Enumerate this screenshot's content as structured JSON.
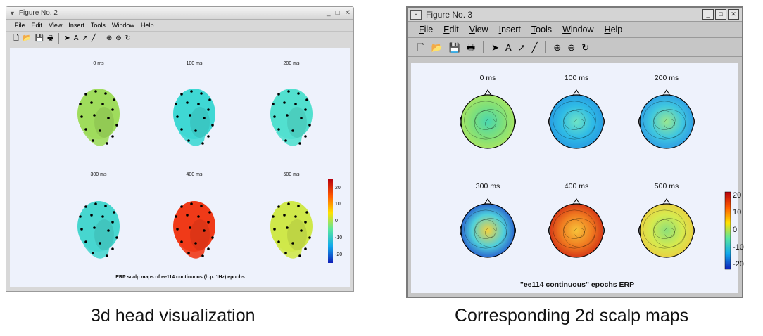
{
  "fig1": {
    "title": "Figure No. 2",
    "menu": [
      "File",
      "Edit",
      "View",
      "Insert",
      "Tools",
      "Window",
      "Help"
    ],
    "tool_icons": [
      "new-file-icon",
      "open-folder-icon",
      "save-icon",
      "print-icon",
      "arrow-pointer-icon",
      "text-tool-icon",
      "arrow-tool-icon",
      "line-tool-icon",
      "zoom-in-icon",
      "zoom-out-icon",
      "rotate-icon"
    ],
    "panels": [
      {
        "label": "0 ms",
        "color": "#9fdc5c"
      },
      {
        "label": "100 ms",
        "color": "#3fd8d4"
      },
      {
        "label": "200 ms",
        "color": "#52e0cf"
      },
      {
        "label": "300 ms",
        "color": "#47d6cf"
      },
      {
        "label": "400 ms",
        "color": "#f03a18"
      },
      {
        "label": "500 ms",
        "color": "#cfe84a"
      }
    ],
    "colorbar_ticks": [
      "20",
      "10",
      "0",
      "-10",
      "-20"
    ],
    "caption": "ERP scalp maps of ee114 continuous (h.p. 1Hz) epochs"
  },
  "fig2": {
    "title": "Figure No. 3",
    "menu": [
      "File",
      "Edit",
      "View",
      "Insert",
      "Tools",
      "Window",
      "Help"
    ],
    "tool_icons": [
      "new-file-icon",
      "open-folder-icon",
      "save-icon",
      "print-icon",
      "arrow-pointer-icon",
      "text-tool-icon",
      "arrow-tool-icon",
      "line-tool-icon",
      "zoom-in-icon",
      "zoom-out-icon",
      "rotate-icon"
    ],
    "panels": [
      {
        "label": "0 ms",
        "colors": [
          "#49d6b0",
          "#7fe07a",
          "#b9e85a"
        ]
      },
      {
        "label": "100 ms",
        "colors": [
          "#6fe4c4",
          "#2fbbe6",
          "#2590e0"
        ]
      },
      {
        "label": "200 ms",
        "colors": [
          "#9ae88f",
          "#3fc7e0",
          "#2a8ee6"
        ]
      },
      {
        "label": "300 ms",
        "colors": [
          "#f5d23d",
          "#4fd0dc",
          "#1a35c8"
        ]
      },
      {
        "label": "400 ms",
        "colors": [
          "#f7c43a",
          "#f07a20",
          "#c81a12"
        ]
      },
      {
        "label": "500 ms",
        "colors": [
          "#8de07a",
          "#d6ea4f",
          "#f2c63c"
        ]
      }
    ],
    "colorbar_ticks": [
      "20",
      "10",
      "0",
      "-10",
      "-20"
    ],
    "caption": "\"ee114 continuous\"  epochs ERP"
  },
  "colorbar_colors": [
    "#b8000c",
    "#ff5a00",
    "#ffe100",
    "#58e6a0",
    "#10a8ec",
    "#1020b8"
  ],
  "captions": {
    "left": "3d head visualization",
    "right": "Corresponding 2d scalp maps"
  }
}
